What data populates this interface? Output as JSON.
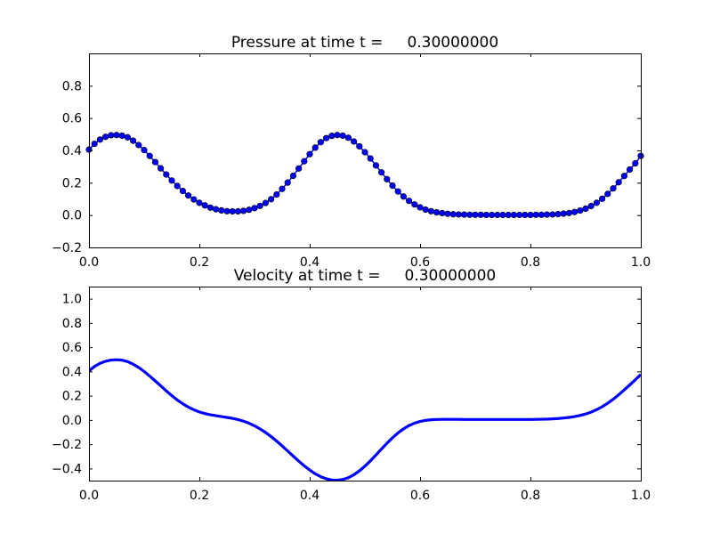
{
  "chart_data": [
    {
      "type": "scatter",
      "title": "Pressure at time t =     0.30000000",
      "xlim": [
        0.0,
        1.0
      ],
      "ylim": [
        -0.2,
        1.0
      ],
      "xticks": [
        "0.0",
        "0.2",
        "0.4",
        "0.6",
        "0.8",
        "1.0"
      ],
      "yticks": [
        "−0.2",
        "0.0",
        "0.2",
        "0.4",
        "0.6",
        "0.8"
      ],
      "xtick_values": [
        0.0,
        0.2,
        0.4,
        0.6,
        0.8,
        1.0
      ],
      "ytick_values": [
        -0.2,
        0.0,
        0.2,
        0.4,
        0.6,
        0.8
      ],
      "grid": false,
      "color": "#0000ff",
      "line": true,
      "markers": true,
      "x": [
        0.0,
        0.01,
        0.02,
        0.03,
        0.04,
        0.05,
        0.06,
        0.07,
        0.08,
        0.09,
        0.1,
        0.11,
        0.12,
        0.13,
        0.14,
        0.15,
        0.16,
        0.17,
        0.18,
        0.19,
        0.2,
        0.21,
        0.22,
        0.23,
        0.24,
        0.25,
        0.26,
        0.27,
        0.28,
        0.29,
        0.3,
        0.31,
        0.32,
        0.33,
        0.34,
        0.35,
        0.36,
        0.37,
        0.38,
        0.39,
        0.4,
        0.41,
        0.42,
        0.43,
        0.44,
        0.45,
        0.46,
        0.47,
        0.48,
        0.49,
        0.5,
        0.51,
        0.52,
        0.53,
        0.54,
        0.55,
        0.56,
        0.57,
        0.58,
        0.59,
        0.6,
        0.61,
        0.62,
        0.63,
        0.64,
        0.65,
        0.66,
        0.67,
        0.68,
        0.69,
        0.7,
        0.71,
        0.72,
        0.73,
        0.74,
        0.75,
        0.76,
        0.77,
        0.78,
        0.79,
        0.8,
        0.81,
        0.82,
        0.83,
        0.84,
        0.85,
        0.86,
        0.87,
        0.88,
        0.89,
        0.9,
        0.91,
        0.92,
        0.93,
        0.94,
        0.95,
        0.96,
        0.97,
        0.98,
        0.99,
        1.0
      ],
      "y": [
        0.405,
        0.441,
        0.467,
        0.484,
        0.494,
        0.495,
        0.491,
        0.481,
        0.46,
        0.433,
        0.402,
        0.366,
        0.328,
        0.289,
        0.251,
        0.214,
        0.18,
        0.149,
        0.121,
        0.097,
        0.076,
        0.06,
        0.046,
        0.036,
        0.029,
        0.024,
        0.023,
        0.023,
        0.026,
        0.033,
        0.043,
        0.057,
        0.075,
        0.098,
        0.127,
        0.162,
        0.201,
        0.243,
        0.288,
        0.333,
        0.377,
        0.417,
        0.451,
        0.476,
        0.49,
        0.495,
        0.491,
        0.478,
        0.455,
        0.425,
        0.389,
        0.35,
        0.307,
        0.264,
        0.222,
        0.182,
        0.146,
        0.115,
        0.088,
        0.066,
        0.048,
        0.034,
        0.024,
        0.017,
        0.012,
        0.008,
        0.005,
        0.004,
        0.003,
        0.002,
        0.002,
        0.002,
        0.001,
        0.001,
        0.001,
        0.001,
        0.001,
        0.001,
        0.001,
        0.001,
        0.001,
        0.002,
        0.002,
        0.003,
        0.004,
        0.006,
        0.009,
        0.013,
        0.019,
        0.028,
        0.04,
        0.056,
        0.076,
        0.101,
        0.131,
        0.165,
        0.203,
        0.242,
        0.282,
        0.32,
        0.366
      ]
    },
    {
      "type": "line",
      "title": "Velocity at time t =     0.30000000",
      "xlim": [
        0.0,
        1.0
      ],
      "ylim": [
        -0.5,
        1.1
      ],
      "xticks": [
        "0.0",
        "0.2",
        "0.4",
        "0.6",
        "0.8",
        "1.0"
      ],
      "yticks": [
        "−0.4",
        "−0.2",
        "0.0",
        "0.2",
        "0.4",
        "0.6",
        "0.8",
        "1.0"
      ],
      "xtick_values": [
        0.0,
        0.2,
        0.4,
        0.6,
        0.8,
        1.0
      ],
      "ytick_values": [
        -0.4,
        -0.2,
        0.0,
        0.2,
        0.4,
        0.6,
        0.8,
        1.0
      ],
      "grid": false,
      "color": "#0000ff",
      "x": [
        0.0,
        0.01,
        0.02,
        0.03,
        0.04,
        0.05,
        0.06,
        0.07,
        0.08,
        0.09,
        0.1,
        0.11,
        0.12,
        0.13,
        0.14,
        0.15,
        0.16,
        0.17,
        0.18,
        0.19,
        0.2,
        0.21,
        0.22,
        0.23,
        0.24,
        0.25,
        0.26,
        0.27,
        0.28,
        0.29,
        0.3,
        0.31,
        0.32,
        0.33,
        0.34,
        0.35,
        0.36,
        0.37,
        0.38,
        0.39,
        0.4,
        0.41,
        0.42,
        0.43,
        0.44,
        0.45,
        0.46,
        0.47,
        0.48,
        0.49,
        0.5,
        0.51,
        0.52,
        0.53,
        0.54,
        0.55,
        0.56,
        0.57,
        0.58,
        0.59,
        0.6,
        0.61,
        0.62,
        0.63,
        0.64,
        0.65,
        0.66,
        0.67,
        0.68,
        0.69,
        0.7,
        0.71,
        0.72,
        0.73,
        0.74,
        0.75,
        0.76,
        0.77,
        0.78,
        0.79,
        0.8,
        0.81,
        0.82,
        0.83,
        0.84,
        0.85,
        0.86,
        0.87,
        0.88,
        0.89,
        0.9,
        0.91,
        0.92,
        0.93,
        0.94,
        0.95,
        0.96,
        0.97,
        0.98,
        0.99,
        1.0
      ],
      "y": [
        0.405,
        0.441,
        0.467,
        0.484,
        0.494,
        0.497,
        0.493,
        0.481,
        0.46,
        0.433,
        0.4,
        0.362,
        0.322,
        0.281,
        0.24,
        0.201,
        0.165,
        0.133,
        0.106,
        0.084,
        0.066,
        0.053,
        0.043,
        0.035,
        0.028,
        0.021,
        0.013,
        0.003,
        -0.01,
        -0.027,
        -0.048,
        -0.074,
        -0.103,
        -0.137,
        -0.174,
        -0.214,
        -0.256,
        -0.298,
        -0.339,
        -0.378,
        -0.413,
        -0.444,
        -0.468,
        -0.485,
        -0.495,
        -0.497,
        -0.491,
        -0.476,
        -0.452,
        -0.42,
        -0.381,
        -0.337,
        -0.289,
        -0.24,
        -0.192,
        -0.147,
        -0.107,
        -0.073,
        -0.046,
        -0.026,
        -0.012,
        -0.003,
        0.002,
        0.004,
        0.005,
        0.005,
        0.005,
        0.005,
        0.004,
        0.004,
        0.004,
        0.004,
        0.004,
        0.004,
        0.004,
        0.004,
        0.004,
        0.004,
        0.004,
        0.004,
        0.004,
        0.005,
        0.006,
        0.007,
        0.009,
        0.012,
        0.016,
        0.021,
        0.028,
        0.037,
        0.049,
        0.065,
        0.085,
        0.109,
        0.138,
        0.171,
        0.208,
        0.248,
        0.289,
        0.331,
        0.375
      ]
    }
  ]
}
